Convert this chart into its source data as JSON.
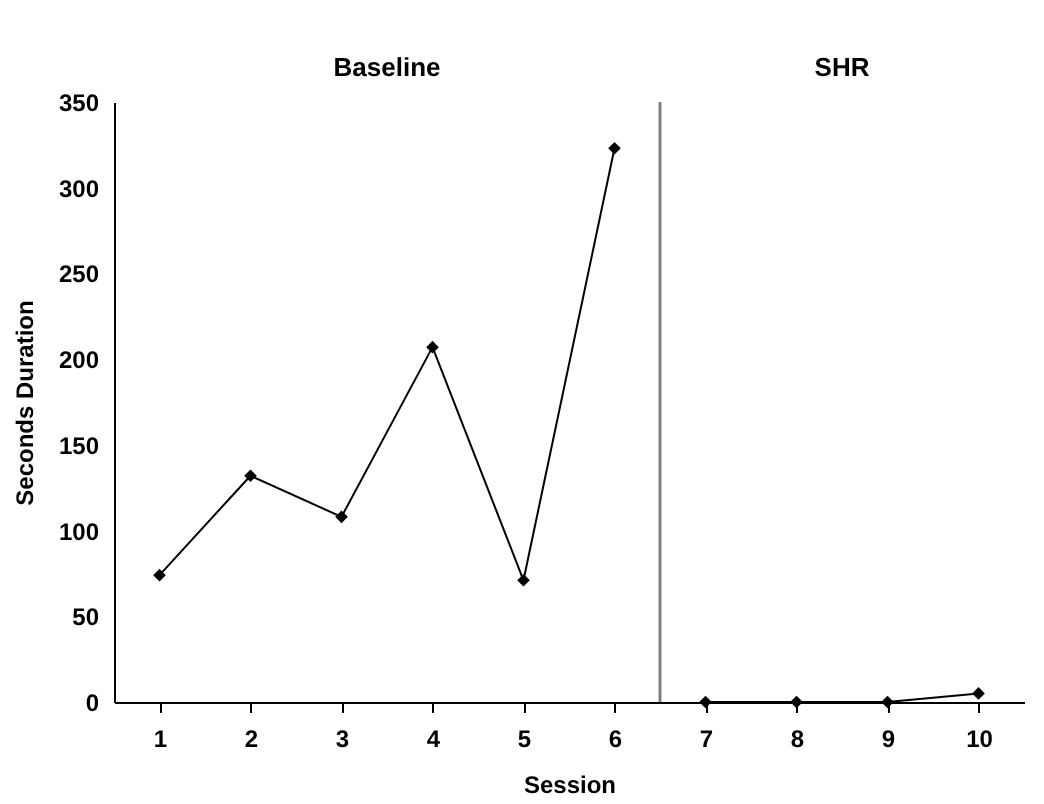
{
  "chart_data": {
    "type": "line",
    "xlabel": "Session",
    "ylabel": "Seconds Duration",
    "xlim": [
      0.5,
      10.5
    ],
    "xticks": [
      1,
      2,
      3,
      4,
      5,
      6,
      7,
      8,
      9,
      10
    ],
    "ylim": [
      0,
      350
    ],
    "yticks": [
      0,
      50,
      100,
      150,
      200,
      250,
      300,
      350
    ],
    "series": [
      {
        "color": "#000000",
        "x": [
          1,
          2,
          3,
          4,
          5,
          6
        ],
        "values": [
          74,
          132,
          108,
          207,
          71,
          323
        ]
      },
      {
        "color": "#000000",
        "x": [
          7,
          8,
          9,
          10
        ],
        "values": [
          0,
          0,
          0,
          5
        ]
      }
    ],
    "ref_lines": [
      {
        "axis": "x",
        "value": 6.5,
        "color": "#808080"
      }
    ],
    "annotations": [
      "Baseline",
      "SHR"
    ],
    "marker": "diamond",
    "line_style": "solid",
    "grid": false
  }
}
